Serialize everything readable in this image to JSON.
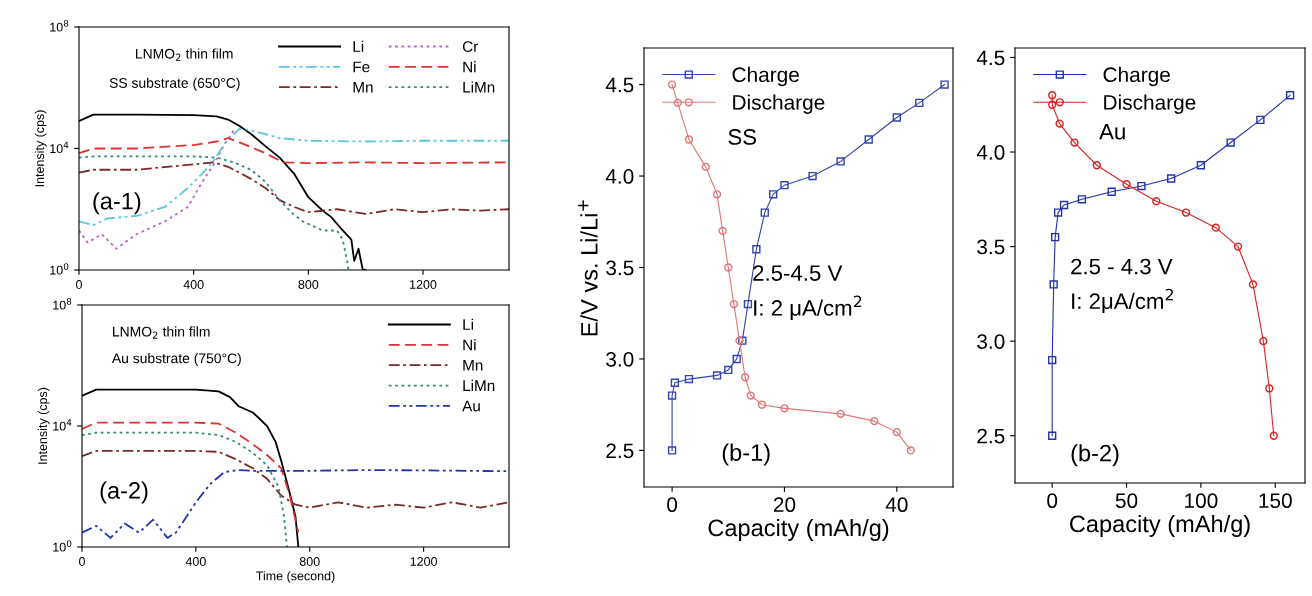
{
  "chart_data": [
    {
      "type": "line",
      "ylabel": "Intensity (cps)",
      "log": "y",
      "xlim": [
        0,
        1500
      ],
      "xticks": [
        0,
        400,
        800,
        1200
      ],
      "ylim": [
        1,
        100000000
      ],
      "yticks": [
        {
          "value": 1,
          "label": "10$^{0}$"
        },
        {
          "value": 10000,
          "label": "10$^{4}$"
        },
        {
          "value": 100000000,
          "label": "10$^{8}$"
        }
      ],
      "legend": "top right",
      "annotations": [
        "LNMO$_{2}$ thin film",
        "SS substrate (650°C)",
        "(a-1)"
      ],
      "series": [
        {
          "name": "Li",
          "color": "#000000",
          "line_style": "solid",
          "x": [
            0,
            50,
            200,
            400,
            480,
            520,
            560,
            600,
            650,
            700,
            750,
            800,
            850,
            880,
            920,
            950,
            960,
            975,
            990,
            1000
          ],
          "values": [
            80000,
            130000,
            130000,
            125000,
            115000,
            90000,
            55000,
            30000,
            12000,
            5000,
            1500,
            250,
            90,
            55,
            20,
            10,
            2,
            5,
            1,
            1
          ]
        },
        {
          "name": "Cr",
          "color": "#c060c0",
          "line_style": "dotted",
          "x": [
            0,
            30,
            80,
            130,
            200,
            300,
            380,
            430,
            470,
            510,
            540
          ],
          "values": [
            20,
            8,
            15,
            5,
            15,
            40,
            120,
            800,
            3000,
            15000,
            40000
          ]
        },
        {
          "name": "Fe",
          "color": "#5bc8d8",
          "line_style": "dashdotdot",
          "x": [
            0,
            50,
            100,
            200,
            300,
            380,
            430,
            470,
            510,
            560,
            600,
            700,
            800,
            1000,
            1200,
            1500
          ],
          "values": [
            40,
            30,
            50,
            60,
            120,
            500,
            1500,
            4000,
            15000,
            45000,
            40000,
            22000,
            18000,
            17000,
            18000,
            18000
          ]
        },
        {
          "name": "Ni",
          "color": "#dd3333",
          "line_style": "dashed",
          "x": [
            0,
            50,
            200,
            400,
            480,
            520,
            560,
            600,
            650,
            700,
            720,
            800,
            1000,
            1200,
            1500
          ],
          "values": [
            7000,
            10000,
            10000,
            13000,
            17000,
            22000,
            16000,
            11000,
            7000,
            4000,
            3500,
            3300,
            3500,
            3300,
            3500
          ]
        },
        {
          "name": "Mn",
          "color": "#7a2a2a",
          "line_style": "dashdot",
          "x": [
            0,
            50,
            200,
            400,
            470,
            520,
            560,
            600,
            650,
            700,
            750,
            800,
            900,
            1000,
            1100,
            1200,
            1300,
            1400,
            1500
          ],
          "values": [
            1600,
            2000,
            2000,
            3000,
            3500,
            2500,
            1600,
            1000,
            500,
            200,
            120,
            80,
            100,
            70,
            100,
            80,
            100,
            90,
            100
          ]
        },
        {
          "name": "LiMn",
          "color": "#2e8b7a",
          "line_style": "dotted",
          "x": [
            0,
            50,
            200,
            400,
            480,
            540,
            600,
            650,
            700,
            740,
            780,
            850,
            900,
            920,
            935,
            940
          ],
          "values": [
            5000,
            5500,
            5500,
            5500,
            5000,
            3500,
            2000,
            800,
            200,
            80,
            40,
            20,
            20,
            10,
            2,
            1
          ]
        }
      ]
    },
    {
      "type": "line",
      "ylabel": "Intensity (cps)",
      "xlabel": "Time (second)",
      "log": "y",
      "xlim": [
        0,
        1500
      ],
      "xticks": [
        0,
        400,
        800,
        1200
      ],
      "ylim": [
        1,
        100000000
      ],
      "yticks": [
        {
          "value": 1,
          "label": "10$^{0}$"
        },
        {
          "value": 10000,
          "label": "10$^{4}$"
        },
        {
          "value": 100000000,
          "label": "10$^{8}$"
        }
      ],
      "legend": "top right",
      "annotations": [
        "LNMO$_{2}$ thin film",
        "Au substrate (750°C)",
        "(a-2)"
      ],
      "series": [
        {
          "name": "Li",
          "color": "#000000",
          "line_style": "solid",
          "x": [
            0,
            50,
            200,
            400,
            480,
            520,
            550,
            600,
            650,
            680,
            700,
            730,
            750,
            760
          ],
          "values": [
            100000,
            160000,
            160000,
            160000,
            140000,
            90000,
            45000,
            28000,
            10000,
            3000,
            700,
            60,
            10,
            1
          ]
        },
        {
          "name": "Ni",
          "color": "#dd3333",
          "line_style": "dashed",
          "x": [
            0,
            50,
            200,
            400,
            480,
            540,
            600,
            650,
            700,
            730,
            760
          ],
          "values": [
            8000,
            13000,
            13000,
            13000,
            12000,
            6000,
            2500,
            1100,
            400,
            50,
            3
          ]
        },
        {
          "name": "Mn",
          "color": "#7a2a2a",
          "line_style": "dashdot",
          "x": [
            0,
            50,
            200,
            400,
            480,
            540,
            600,
            650,
            700,
            750,
            800,
            900,
            1000,
            1100,
            1200,
            1300,
            1400,
            1500
          ],
          "values": [
            1000,
            1500,
            1500,
            1500,
            1400,
            800,
            400,
            180,
            50,
            25,
            20,
            30,
            20,
            25,
            20,
            30,
            20,
            30
          ]
        },
        {
          "name": "LiMn",
          "color": "#2e8b7a",
          "line_style": "dotted",
          "x": [
            0,
            50,
            200,
            400,
            480,
            540,
            600,
            650,
            690,
            710,
            720
          ],
          "values": [
            5000,
            6000,
            6000,
            6000,
            5000,
            3000,
            1300,
            500,
            100,
            10,
            1
          ]
        },
        {
          "name": "Au",
          "color": "#2233aa",
          "line_style": "dashdotdot",
          "x": [
            0,
            50,
            100,
            150,
            200,
            250,
            300,
            330,
            360,
            400,
            450,
            500,
            550,
            600,
            800,
            1000,
            1200,
            1500
          ],
          "values": [
            3,
            5,
            2,
            6,
            3,
            8,
            2,
            3,
            8,
            30,
            120,
            300,
            350,
            330,
            330,
            350,
            340,
            320
          ]
        }
      ]
    },
    {
      "type": "line",
      "xlabel": "Capacity (mAh/g)",
      "ylabel": "E/V vs. Li/Li$^{+}$",
      "xlim": [
        -5,
        50
      ],
      "xticks": [
        0,
        20,
        40
      ],
      "ylim": [
        2.3,
        4.7
      ],
      "yticks": [
        2.5,
        {
          "value": 3,
          "label": "3.0"
        },
        3.5,
        {
          "value": 4,
          "label": "4.0"
        },
        4.5
      ],
      "legend": "top left",
      "annotations": [
        "SS",
        "2.5-4.5 V",
        "I: 2 μA/cm$^{2}$",
        "(b-1)"
      ],
      "series": [
        {
          "name": "Charge",
          "color": "#3344aa",
          "marker": "square",
          "x": [
            0,
            0,
            0.5,
            3,
            8,
            10,
            11.5,
            12.5,
            13.5,
            15,
            16.5,
            18,
            20,
            25,
            30,
            35,
            40,
            44,
            48.5
          ],
          "values": [
            2.5,
            2.8,
            2.87,
            2.89,
            2.91,
            2.94,
            3.0,
            3.1,
            3.3,
            3.6,
            3.8,
            3.9,
            3.95,
            4.0,
            4.08,
            4.2,
            4.32,
            4.4,
            4.5
          ]
        },
        {
          "name": "Discharge",
          "color": "#dd7777",
          "marker": "circle",
          "x": [
            0,
            1,
            3,
            6,
            8,
            9,
            10,
            11,
            12,
            13,
            14,
            16,
            20,
            30,
            36,
            40,
            42.5
          ],
          "values": [
            4.5,
            4.4,
            4.2,
            4.05,
            3.9,
            3.7,
            3.5,
            3.3,
            3.1,
            2.9,
            2.8,
            2.75,
            2.73,
            2.7,
            2.66,
            2.6,
            2.5
          ]
        }
      ]
    },
    {
      "type": "line",
      "xlabel": "Capacity (mAh/g)",
      "xlim": [
        -25,
        170
      ],
      "xticks": [
        0,
        50,
        100,
        150
      ],
      "ylim": [
        2.25,
        4.55
      ],
      "yticks": [
        2.5,
        {
          "value": 3,
          "label": "3.0"
        },
        3.5,
        {
          "value": 4,
          "label": "4.0"
        },
        4.5
      ],
      "legend": "top left",
      "annotations": [
        "Au",
        "2.5 - 4.3 V",
        "I: 2μA/cm$^{2}$",
        "(b-2)"
      ],
      "series": [
        {
          "name": "Charge",
          "color": "#2233aa",
          "marker": "square",
          "x": [
            0,
            0,
            1,
            2,
            4,
            8,
            20,
            40,
            60,
            80,
            100,
            120,
            140,
            160
          ],
          "values": [
            2.5,
            2.9,
            3.3,
            3.55,
            3.68,
            3.72,
            3.75,
            3.79,
            3.82,
            3.86,
            3.93,
            4.05,
            4.17,
            4.3
          ]
        },
        {
          "name": "Discharge",
          "color": "#dd2222",
          "marker": "circle",
          "x": [
            0,
            0,
            5,
            15,
            30,
            50,
            70,
            90,
            110,
            125,
            135,
            142,
            146,
            149
          ],
          "values": [
            4.3,
            4.25,
            4.15,
            4.05,
            3.93,
            3.83,
            3.74,
            3.68,
            3.6,
            3.5,
            3.3,
            3.0,
            2.75,
            2.5
          ]
        }
      ]
    }
  ]
}
